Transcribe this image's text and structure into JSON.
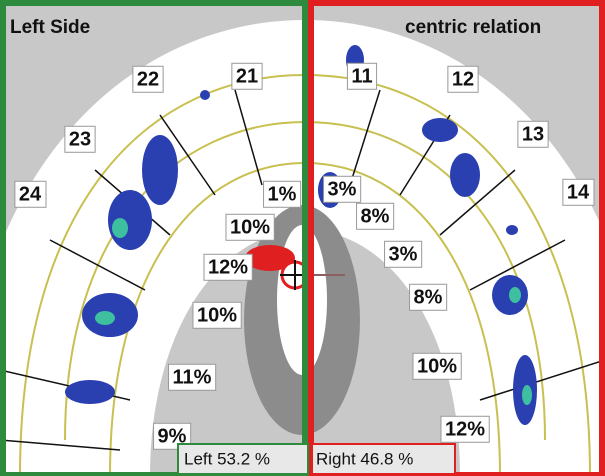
{
  "left_panel": {
    "title": "Left Side",
    "teeth": [
      "21",
      "22",
      "23",
      "24"
    ],
    "percentages": [
      "1%",
      "10%",
      "12%",
      "10%",
      "11%",
      "9%"
    ]
  },
  "right_panel": {
    "title": "centric relation",
    "teeth": [
      "11",
      "12",
      "13",
      "14"
    ],
    "percentages": [
      "3%",
      "8%",
      "3%",
      "8%",
      "10%",
      "12%"
    ]
  },
  "footer": {
    "left": "Left 53.2 %",
    "right": "Right 46.8 %"
  }
}
